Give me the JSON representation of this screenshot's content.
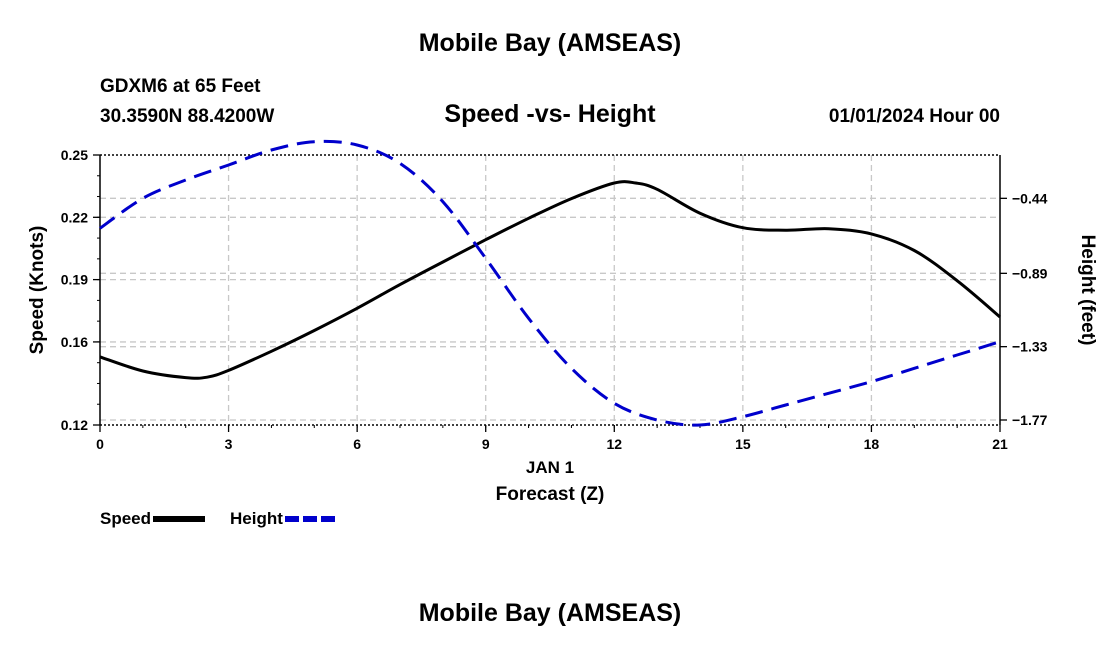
{
  "page": {
    "title_top": "Mobile Bay (AMSEAS)",
    "title_bottom": "Mobile Bay (AMSEAS)",
    "station": "GDXM6 at 65 Feet",
    "coordinates": "30.3590N  88.4200W",
    "subtitle": "Speed -vs- Height",
    "datetime": "01/01/2024 Hour 00"
  },
  "chart_data": {
    "type": "line",
    "title": "Speed -vs- Height",
    "xlabel": "Forecast (Z)",
    "xlabel_date": "JAN 1",
    "ylabel_left": "Speed (Knots)",
    "ylabel_right": "Height (feet)",
    "xlim": [
      0,
      21
    ],
    "ylim_left": [
      0.12,
      0.25
    ],
    "ylim_right": [
      -1.8,
      -0.18
    ],
    "x_ticks": [
      0,
      3,
      6,
      9,
      12,
      15,
      18,
      21
    ],
    "x_tick_labels": [
      "0",
      "3",
      "6",
      "9",
      "12",
      "15",
      "18",
      "21"
    ],
    "y_left_ticks": [
      0.12,
      0.16,
      0.19,
      0.22,
      0.25
    ],
    "y_left_tick_labels": [
      "0.12",
      "0.16",
      "0.19",
      "0.22",
      "0.25"
    ],
    "y_right_ticks": [
      -0.44,
      -0.89,
      -1.33,
      -1.77
    ],
    "y_right_tick_labels": [
      "−0.44",
      "−0.89",
      "−1.33",
      "−1.77"
    ],
    "grid": true,
    "legend_position": "bottom-left",
    "series": [
      {
        "name": "Speed",
        "axis": "left",
        "color": "#000000",
        "style": "solid",
        "x": [
          0,
          1,
          2,
          2.5,
          3,
          4,
          5,
          6,
          7,
          8,
          9,
          10,
          11,
          12,
          12.5,
          13,
          14,
          15,
          16,
          17,
          18,
          19,
          20,
          21
        ],
        "values": [
          0.1528,
          0.146,
          0.1428,
          0.143,
          0.1463,
          0.1555,
          0.1655,
          0.1762,
          0.1876,
          0.1985,
          0.2092,
          0.2195,
          0.229,
          0.2365,
          0.2365,
          0.2335,
          0.222,
          0.215,
          0.2138,
          0.2145,
          0.212,
          0.204,
          0.1895,
          0.172
        ]
      },
      {
        "name": "Height",
        "axis": "right",
        "color": "#0000cc",
        "style": "dashed",
        "x": [
          0,
          1,
          2,
          3,
          4,
          5,
          6,
          7,
          8,
          9,
          10,
          11,
          12,
          13,
          14,
          15,
          16,
          17,
          18,
          19,
          20,
          21
        ],
        "values": [
          -0.62,
          -0.44,
          -0.33,
          -0.24,
          -0.15,
          -0.1,
          -0.12,
          -0.23,
          -0.46,
          -0.8,
          -1.16,
          -1.46,
          -1.67,
          -1.77,
          -1.8,
          -1.75,
          -1.68,
          -1.61,
          -1.54,
          -1.46,
          -1.38,
          -1.3
        ]
      }
    ]
  }
}
